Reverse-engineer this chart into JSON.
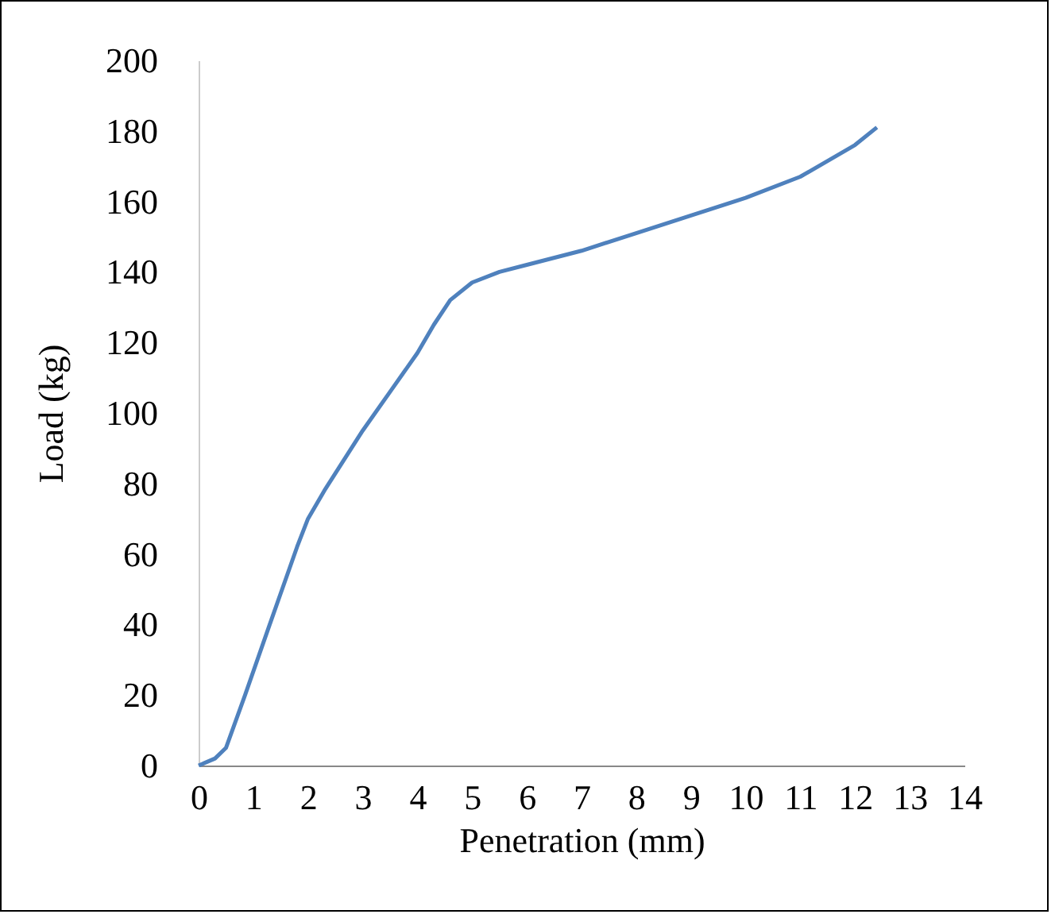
{
  "chart_data": {
    "type": "line",
    "xlabel": "Penetration (mm)",
    "ylabel": "Load (kg)",
    "x": [
      0,
      0.3,
      0.5,
      0.85,
      1.3,
      1.8,
      2,
      2.3,
      3,
      3.5,
      4,
      4.3,
      4.6,
      5,
      5.5,
      6,
      7,
      8,
      9,
      10,
      11,
      12,
      12.4
    ],
    "series": [
      {
        "color": "#4f81bd",
        "values": [
          0,
          2,
          5,
          20,
          40,
          62,
          70,
          78,
          95,
          106,
          117,
          125,
          132,
          137,
          140,
          142,
          146,
          151,
          156,
          161,
          167,
          176,
          181
        ]
      }
    ],
    "xlim": [
      0,
      14
    ],
    "xticks": [
      0,
      1,
      2,
      3,
      4,
      5,
      6,
      7,
      8,
      9,
      10,
      11,
      12,
      13,
      14
    ],
    "ylim": [
      0,
      200
    ],
    "yticks": [
      0,
      20,
      40,
      60,
      80,
      100,
      120,
      140,
      160,
      180,
      200
    ],
    "grid": false,
    "legend": false,
    "marker": "none",
    "line_style": "solid"
  }
}
